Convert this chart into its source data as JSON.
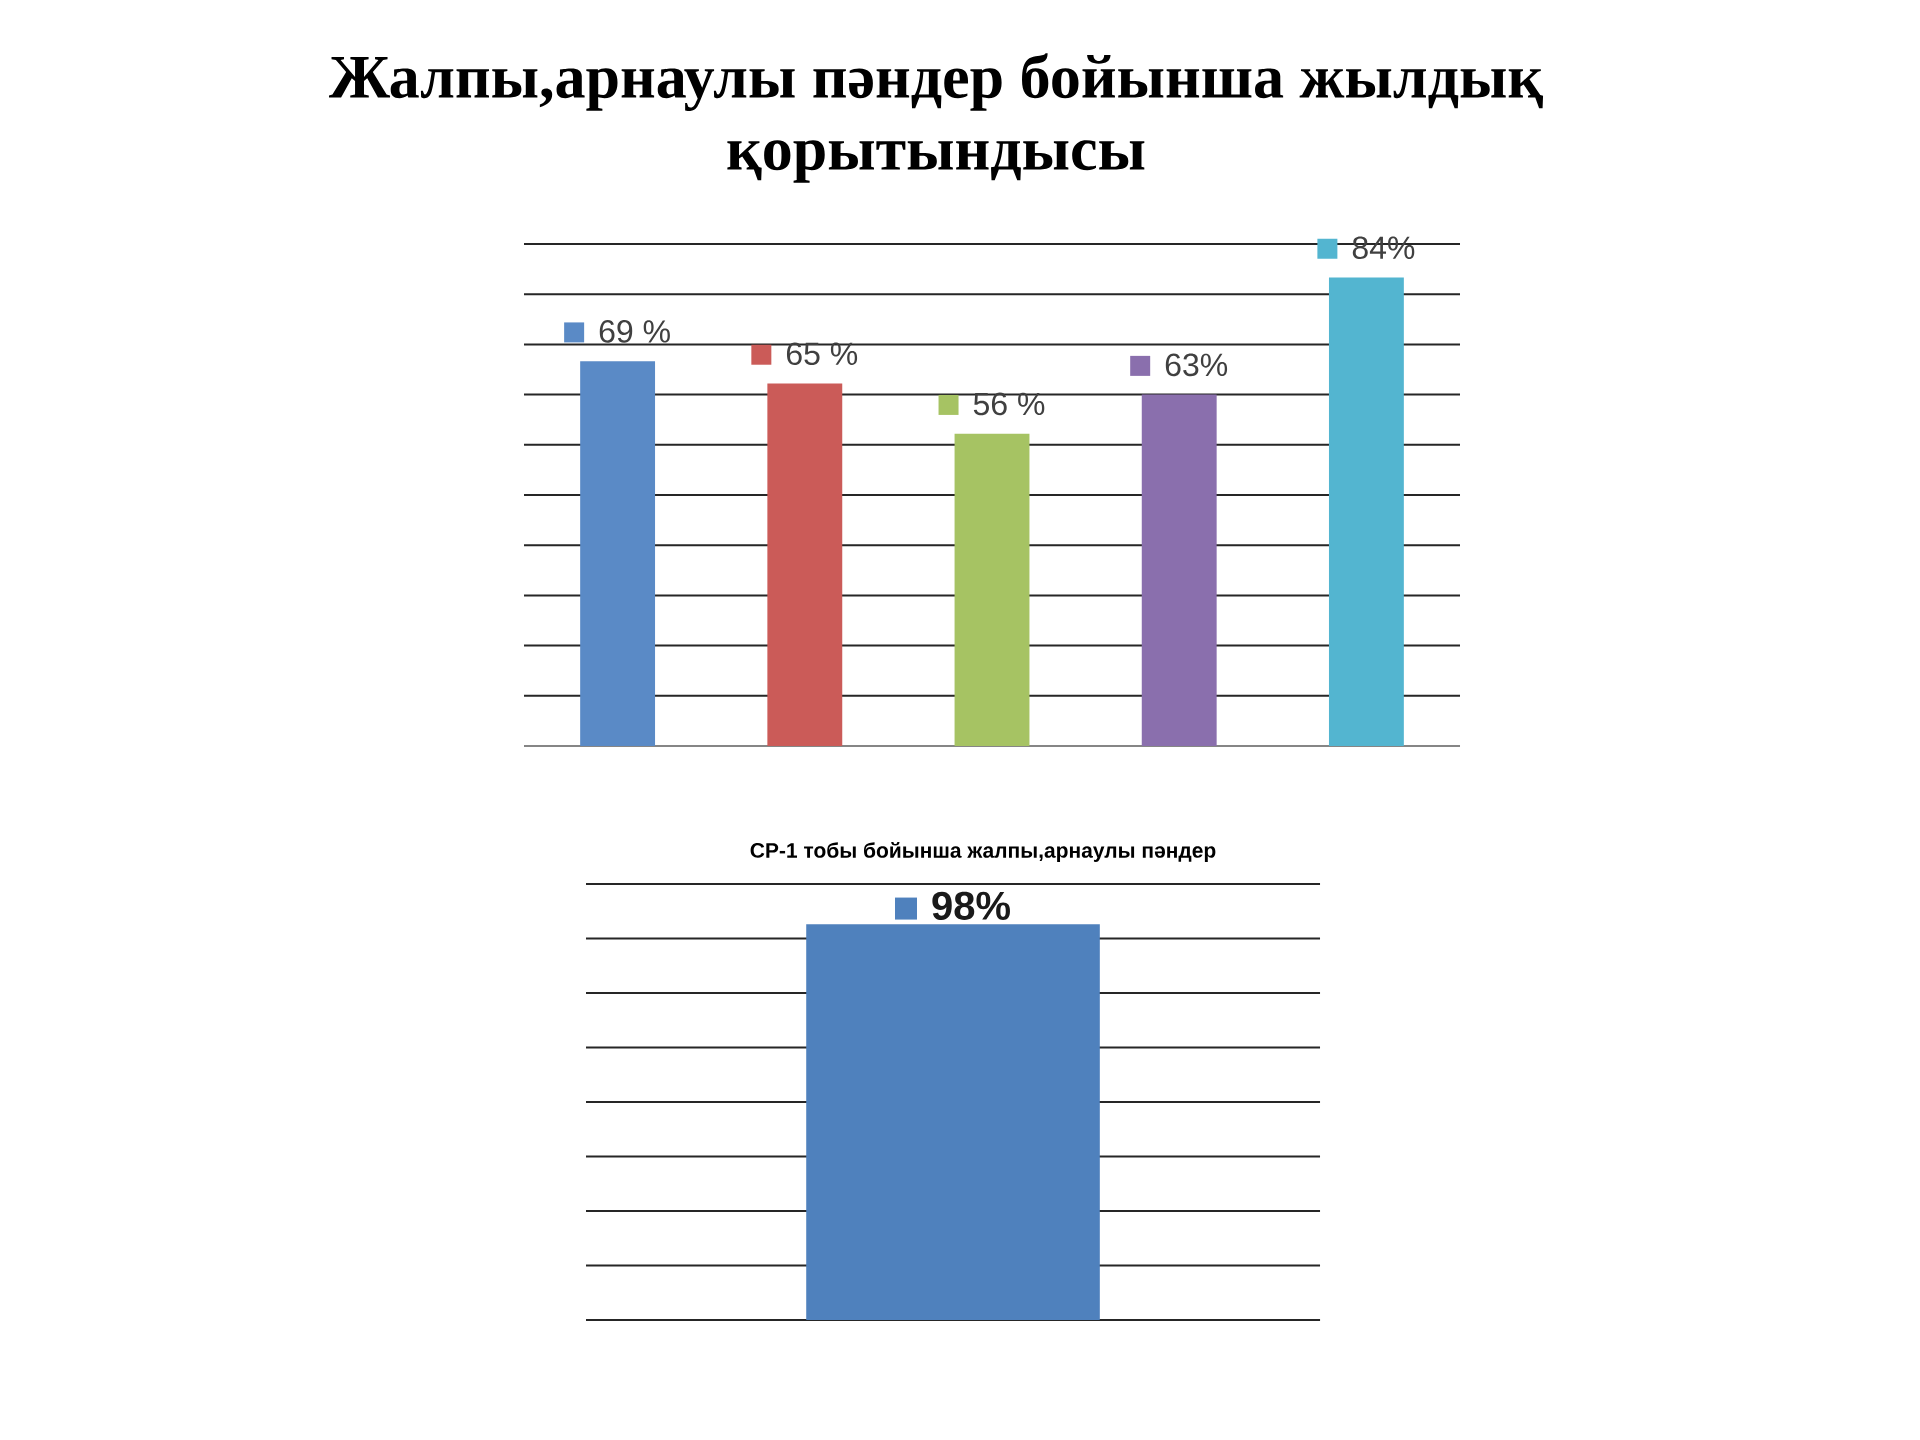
{
  "chart_data": [
    {
      "type": "bar",
      "title": "Жалпы,арнаулы пәндер бойынша жылдық қорытындысы",
      "categories": [
        null,
        null,
        null,
        null,
        null
      ],
      "values": [
        69,
        65,
        56,
        63,
        84
      ],
      "colors": [
        "#5a8ac6",
        "#cb5b58",
        "#a6c363",
        "#8a6fad",
        "#53b5d0"
      ],
      "value_labels": [
        "69 %",
        "65 %",
        "56 %",
        "63%",
        "84%"
      ],
      "ylim": [
        0,
        90
      ],
      "yticks": [
        {
          "value": 0,
          "label": null
        },
        {
          "value": 9,
          "label": null
        },
        {
          "value": 18,
          "label": null
        },
        {
          "value": 27,
          "label": null
        },
        {
          "value": 36,
          "label": null
        },
        {
          "value": 45,
          "label": null
        },
        {
          "value": 54,
          "label": null
        },
        {
          "value": 63,
          "label": null
        },
        {
          "value": 72,
          "label": null
        },
        {
          "value": 81,
          "label": null
        },
        {
          "value": 90,
          "label": null
        }
      ],
      "grid": "y"
    },
    {
      "type": "bar",
      "title": "СР-1 тобы бойынша жалпы,арнаулы пәндер",
      "categories": [
        null
      ],
      "values": [
        98
      ],
      "colors": [
        "#4f81bd"
      ],
      "value_labels": [
        "98%"
      ],
      "ylim": [
        0,
        108
      ],
      "yticks": [
        {
          "value": 0,
          "label": null
        },
        {
          "value": 13.5,
          "label": null
        },
        {
          "value": 27,
          "label": null
        },
        {
          "value": 40.5,
          "label": null
        },
        {
          "value": 54,
          "label": null
        },
        {
          "value": 67.5,
          "label": null
        },
        {
          "value": 81,
          "label": null
        },
        {
          "value": 94.5,
          "label": null
        },
        {
          "value": 108,
          "label": null
        }
      ],
      "grid": "y"
    }
  ]
}
